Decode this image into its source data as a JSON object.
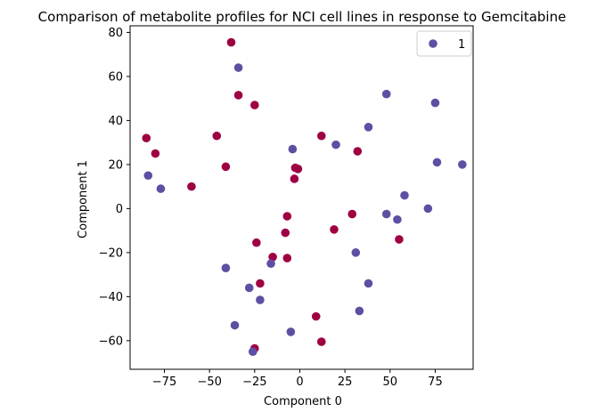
{
  "chart_data": {
    "type": "scatter",
    "title": "Comparison of metabolite profiles for NCI cell lines in response to Gemcitabine",
    "xlabel": "Component 0",
    "ylabel": "Component 1",
    "xlim": [
      -94,
      96
    ],
    "ylim": [
      -73,
      83
    ],
    "x_ticks": [
      -75,
      -50,
      -25,
      0,
      25,
      50,
      75
    ],
    "y_ticks": [
      -60,
      -40,
      -20,
      0,
      20,
      40,
      60,
      80
    ],
    "x_tick_labels": [
      "−75",
      "−50",
      "−25",
      "0",
      "25",
      "50",
      "75"
    ],
    "y_tick_labels": [
      "−60",
      "−40",
      "−20",
      "0",
      "20",
      "40",
      "60",
      "80"
    ],
    "grid": false,
    "legend": {
      "position": "top-right",
      "entries": [
        "1"
      ]
    },
    "colors": {
      "class_0": "#9e0142",
      "class_1": "#5e4fa2"
    },
    "series": [
      {
        "color": "#9e0142",
        "points": [
          [
            -85,
            32
          ],
          [
            -80,
            25
          ],
          [
            -60,
            10
          ],
          [
            -46,
            33
          ],
          [
            -41,
            19
          ],
          [
            -38,
            75.5
          ],
          [
            -34,
            51.5
          ],
          [
            -25,
            47
          ],
          [
            -2.5,
            18.5
          ],
          [
            -1,
            18
          ],
          [
            -3,
            13.5
          ],
          [
            -7,
            -3.5
          ],
          [
            -8,
            -11
          ],
          [
            -24,
            -15.5
          ],
          [
            -15,
            -22
          ],
          [
            -7,
            -22.5
          ],
          [
            -22,
            -34
          ],
          [
            -25,
            -63.5
          ],
          [
            9,
            -49
          ],
          [
            12,
            -60.5
          ],
          [
            12,
            33
          ],
          [
            32,
            26
          ],
          [
            19,
            -9.5
          ],
          [
            29,
            -2.5
          ],
          [
            55,
            -14
          ]
        ]
      },
      {
        "name": "1",
        "color": "#5e4fa2",
        "points": [
          [
            -84,
            15
          ],
          [
            -77,
            9
          ],
          [
            -34,
            64
          ],
          [
            -4,
            27
          ],
          [
            20,
            29
          ],
          [
            38,
            37
          ],
          [
            48,
            52
          ],
          [
            75,
            48
          ],
          [
            76,
            21
          ],
          [
            90,
            20
          ],
          [
            58,
            6
          ],
          [
            71,
            0
          ],
          [
            48,
            -2.5
          ],
          [
            54,
            -5
          ],
          [
            31,
            -20
          ],
          [
            -41,
            -27
          ],
          [
            -16,
            -25
          ],
          [
            -28,
            -36
          ],
          [
            -22,
            -41.5
          ],
          [
            38,
            -34
          ],
          [
            33,
            -46.5
          ],
          [
            -36,
            -53
          ],
          [
            -5,
            -56
          ],
          [
            -26,
            -65
          ]
        ]
      }
    ]
  }
}
